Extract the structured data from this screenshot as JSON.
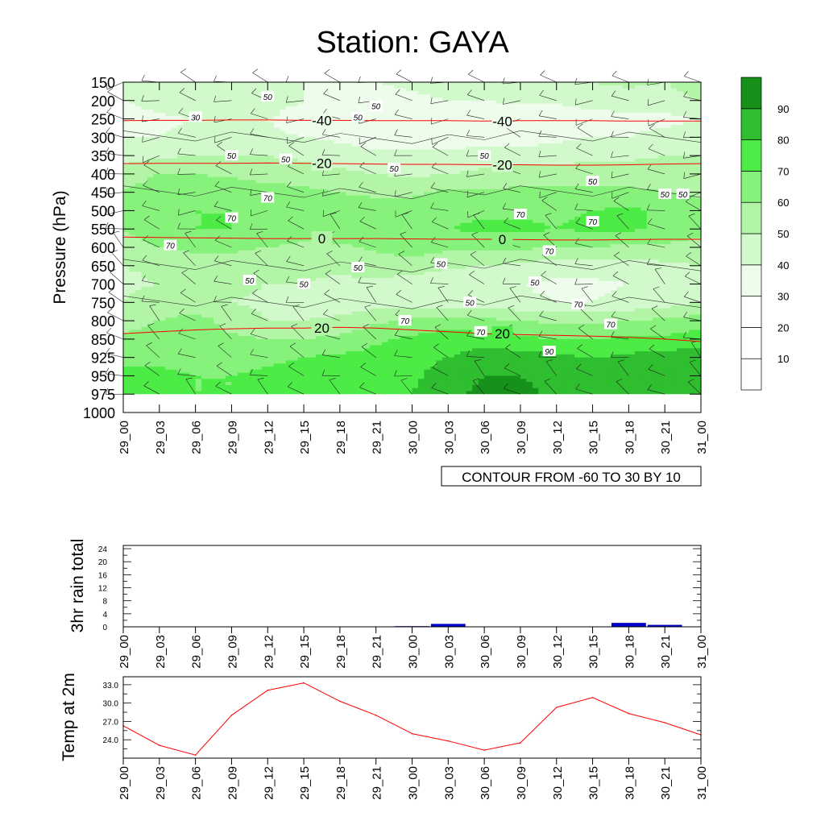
{
  "title": "Station: GAYA",
  "colors": {
    "fill_levels": [
      "#ffffff",
      "#ffffff",
      "#ffffff",
      "#eefdeb",
      "#d1f9cb",
      "#b2f5a6",
      "#86f27b",
      "#4ceb45",
      "#2fbe2f",
      "#16921b"
    ],
    "contour_line": "#000000",
    "temp_line": "#ff0000",
    "rain_bar": "#0000cc"
  },
  "chart_data": [
    {
      "type": "heatmap",
      "name": "relative-humidity-cross-section",
      "ylabel": "Pressure (hPa)",
      "xlabel": "",
      "x_ticks": [
        "29_00",
        "29_03",
        "29_06",
        "29_09",
        "29_12",
        "29_15",
        "29_18",
        "29_21",
        "30_00",
        "30_03",
        "30_06",
        "30_09",
        "30_12",
        "30_15",
        "30_18",
        "30_21",
        "31_00"
      ],
      "y_ticks": [
        150,
        200,
        250,
        300,
        350,
        400,
        450,
        500,
        550,
        600,
        650,
        700,
        750,
        800,
        850,
        925,
        950,
        975,
        1000
      ],
      "ylim": [
        150,
        1000
      ],
      "y_reversed": true,
      "color_levels": [
        10,
        20,
        30,
        40,
        50,
        60,
        70,
        80,
        90
      ],
      "colorbar_labels": [
        "90",
        "80",
        "70",
        "60",
        "50",
        "40",
        "30",
        "20",
        "10"
      ],
      "contour_info": "CONTOUR FROM -60 TO 30 BY 10",
      "rh_contour_labels": [
        "50",
        "30",
        "50",
        "50",
        "50",
        "50",
        "50",
        "50",
        "50",
        "50",
        "70",
        "70",
        "70",
        "70",
        "70",
        "70",
        "50",
        "50",
        "50",
        "50",
        "50",
        "50",
        "70",
        "70",
        "70",
        "70",
        "90",
        "50"
      ],
      "rh_grid": [
        [
          45,
          45,
          45,
          42,
          42,
          40,
          40,
          40,
          42,
          45,
          48,
          48,
          48,
          50,
          52,
          50,
          55
        ],
        [
          40,
          45,
          50,
          48,
          45,
          40,
          38,
          36,
          38,
          40,
          40,
          42,
          42,
          45,
          45,
          45,
          50
        ],
        [
          35,
          38,
          40,
          40,
          40,
          35,
          32,
          30,
          30,
          30,
          32,
          32,
          32,
          35,
          38,
          38,
          40
        ],
        [
          40,
          40,
          42,
          42,
          42,
          40,
          38,
          35,
          35,
          35,
          35,
          35,
          38,
          40,
          40,
          42,
          45
        ],
        [
          45,
          48,
          50,
          50,
          50,
          48,
          45,
          42,
          42,
          42,
          45,
          45,
          45,
          48,
          48,
          50,
          50
        ],
        [
          55,
          60,
          60,
          58,
          55,
          55,
          52,
          50,
          48,
          50,
          52,
          55,
          55,
          55,
          55,
          55,
          55
        ],
        [
          60,
          65,
          68,
          68,
          65,
          62,
          60,
          58,
          58,
          62,
          62,
          62,
          62,
          62,
          62,
          60,
          58
        ],
        [
          62,
          68,
          70,
          70,
          68,
          65,
          65,
          65,
          65,
          68,
          68,
          68,
          68,
          70,
          72,
          68,
          65
        ],
        [
          60,
          68,
          70,
          70,
          68,
          65,
          68,
          70,
          70,
          70,
          72,
          72,
          70,
          72,
          72,
          68,
          65
        ],
        [
          55,
          60,
          62,
          62,
          60,
          58,
          58,
          62,
          65,
          62,
          62,
          62,
          60,
          60,
          58,
          58,
          55
        ],
        [
          50,
          52,
          55,
          55,
          52,
          52,
          52,
          55,
          55,
          52,
          50,
          48,
          45,
          45,
          45,
          48,
          50
        ],
        [
          48,
          50,
          52,
          52,
          50,
          50,
          48,
          48,
          45,
          42,
          40,
          40,
          38,
          38,
          40,
          45,
          48
        ],
        [
          50,
          55,
          52,
          50,
          48,
          45,
          45,
          45,
          45,
          45,
          45,
          42,
          40,
          40,
          42,
          45,
          50
        ],
        [
          55,
          60,
          65,
          55,
          50,
          50,
          52,
          58,
          62,
          65,
          62,
          60,
          58,
          58,
          60,
          62,
          65
        ],
        [
          62,
          65,
          65,
          62,
          60,
          60,
          62,
          68,
          72,
          75,
          75,
          72,
          70,
          70,
          72,
          72,
          75
        ],
        [
          68,
          68,
          66,
          65,
          68,
          70,
          72,
          74,
          76,
          80,
          85,
          85,
          82,
          80,
          82,
          85,
          85
        ],
        [
          72,
          72,
          70,
          70,
          72,
          74,
          74,
          74,
          78,
          85,
          90,
          90,
          88,
          84,
          86,
          88,
          88
        ],
        [
          72,
          72,
          70,
          70,
          72,
          74,
          76,
          74,
          80,
          88,
          92,
          92,
          88,
          85,
          86,
          88,
          90
        ]
      ],
      "temperature_contours": [
        {
          "label": "-40",
          "values": [
            -40,
            -40,
            -40,
            -40,
            -40,
            -40,
            -40,
            -40,
            -40,
            -40,
            -40,
            -40,
            -40,
            -40,
            -40,
            -40,
            -40
          ],
          "pressure": [
            255,
            254,
            254,
            253,
            253,
            254,
            254,
            255,
            255,
            255,
            256,
            255,
            255,
            255,
            256,
            256,
            256
          ]
        },
        {
          "label": "-20",
          "values": [
            -20,
            -20,
            -20,
            -20,
            -20,
            -20,
            -20,
            -20,
            -20,
            -20,
            -20,
            -20,
            -20,
            -20,
            -20,
            -20,
            -20
          ],
          "pressure": [
            372,
            371,
            371,
            371,
            370,
            371,
            372,
            373,
            374,
            374,
            375,
            375,
            376,
            376,
            375,
            373,
            372
          ]
        },
        {
          "label": "0",
          "values": [
            0,
            0,
            0,
            0,
            0,
            0,
            0,
            0,
            0,
            0,
            0,
            0,
            0,
            0,
            0,
            0,
            0
          ],
          "pressure": [
            572,
            573,
            574,
            575,
            576,
            576,
            576,
            576,
            577,
            578,
            578,
            579,
            580,
            580,
            579,
            578,
            578
          ]
        },
        {
          "label": "20",
          "values": [
            20,
            20,
            20,
            20,
            20,
            20,
            20,
            20,
            20,
            20,
            20,
            20,
            20,
            20,
            20,
            20,
            20
          ],
          "pressure": [
            835,
            830,
            825,
            822,
            820,
            820,
            818,
            820,
            825,
            830,
            835,
            838,
            840,
            842,
            845,
            850,
            860
          ]
        }
      ]
    },
    {
      "type": "bar",
      "name": "3hr-rain-total",
      "ylabel": "3hr rain total",
      "xlabel": "",
      "categories": [
        "29_00",
        "29_03",
        "29_06",
        "29_09",
        "29_12",
        "29_15",
        "29_18",
        "29_21",
        "30_00",
        "30_03",
        "30_06",
        "30_09",
        "30_12",
        "30_15",
        "30_18",
        "30_21",
        "31_00"
      ],
      "values": [
        0,
        0,
        0,
        0,
        0,
        0,
        0,
        0,
        0.2,
        0.9,
        0,
        0,
        0,
        0,
        1.2,
        0.6,
        0
      ],
      "y_ticks": [
        0,
        2,
        4,
        6,
        8,
        10,
        12,
        14,
        16,
        18,
        20,
        22,
        24
      ],
      "y_tick_labels": [
        "0",
        "4",
        "8",
        "12",
        "16",
        "20",
        "24"
      ],
      "ylim": [
        0,
        25
      ]
    },
    {
      "type": "line",
      "name": "temp-at-2m",
      "ylabel": "Temp at 2m",
      "xlabel": "",
      "x": [
        "29_00",
        "29_03",
        "29_06",
        "29_09",
        "29_12",
        "29_15",
        "29_18",
        "29_21",
        "30_00",
        "30_03",
        "30_06",
        "30_09",
        "30_12",
        "30_15",
        "30_18",
        "30_21",
        "31_00"
      ],
      "values": [
        26.3,
        23.1,
        21.5,
        28.0,
        32.1,
        33.3,
        30.3,
        28.0,
        25.0,
        23.8,
        22.3,
        23.5,
        29.3,
        30.9,
        28.3,
        26.8,
        24.8
      ],
      "y_tick_labels": [
        "24.0",
        "27.0",
        "30.0",
        "33.0"
      ],
      "ylim": [
        21.0,
        34.3
      ]
    }
  ]
}
